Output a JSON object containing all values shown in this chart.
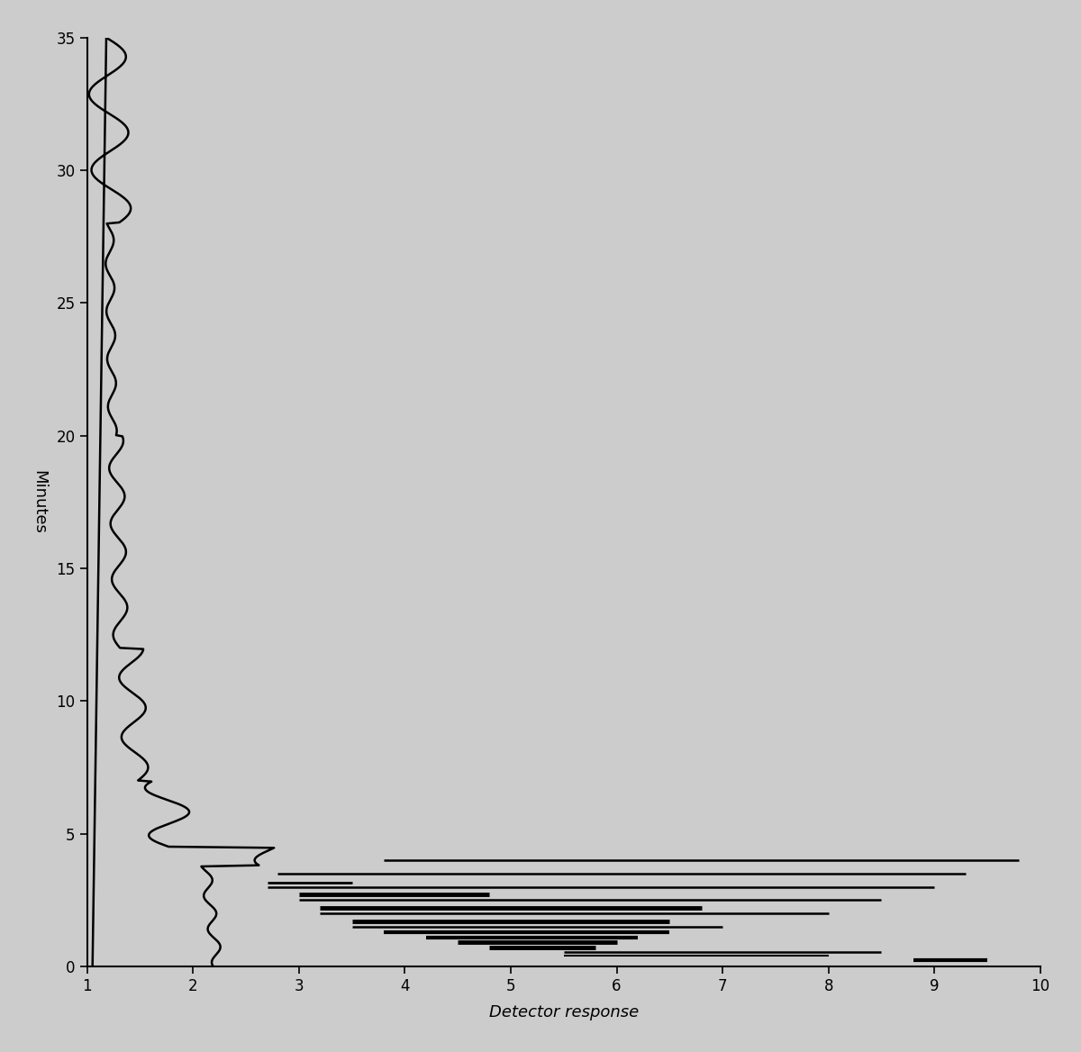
{
  "background_color": "#d8d8d8",
  "plot_bg": "#d8d8d8",
  "line_color": "#000000",
  "xlabel": "Detector response",
  "ylabel": "Minutes",
  "xlim": [
    1,
    10
  ],
  "ylim": [
    0,
    35
  ],
  "xticks": [
    1,
    2,
    3,
    4,
    5,
    6,
    7,
    8,
    9,
    10
  ],
  "yticks": [
    0,
    5,
    10,
    15,
    20,
    25,
    30,
    35
  ],
  "figsize": [
    12.0,
    11.68
  ],
  "dpi": 100
}
